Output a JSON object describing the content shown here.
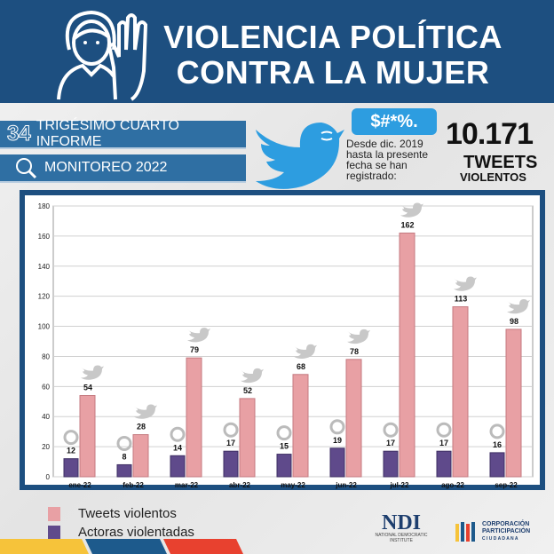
{
  "header": {
    "title_line1": "VIOLENCIA POLÍTICA",
    "title_line2": "CONTRA LA MUJER"
  },
  "bands": {
    "report_number": "34",
    "report_label": "TRIGÉSIMO CUARTO INFORME",
    "monitoring_label": "MONITOREO 2022"
  },
  "callout": {
    "bubble": "$#*%.",
    "desde": "Desde dic. 2019 hasta la presente fecha se han registrado:",
    "total": "10.171",
    "tweets": "TWEETS",
    "violentos": "VIOLENTOS"
  },
  "logos": {
    "ndi": "NDI",
    "ndi_sub": "NATIONAL DEMOCRATIC INSTITUTE",
    "cpc1": "CORPORACIÓN",
    "cpc2": "PARTICIPACIÓN",
    "cpc3": "C I U D A D A N A"
  },
  "colors": {
    "tweets": "#e8a0a4",
    "actoras": "#5f4a8b",
    "frame": "#1d4f80"
  },
  "chart_data": {
    "type": "bar",
    "categories": [
      "ene-22",
      "feb-22",
      "mar-22",
      "abr-22",
      "may-22",
      "jun-22",
      "jul-22",
      "ago-22",
      "sep-22"
    ],
    "series": [
      {
        "name": "Actoras violentadas",
        "values": [
          12,
          8,
          14,
          17,
          15,
          19,
          17,
          17,
          16
        ]
      },
      {
        "name": "Tweets violentos",
        "values": [
          54,
          28,
          79,
          52,
          68,
          78,
          162,
          113,
          98
        ]
      }
    ],
    "ylim": [
      0,
      180
    ],
    "yticks": [
      0,
      20,
      40,
      60,
      80,
      100,
      120,
      140,
      160,
      180
    ],
    "grid": true,
    "legend": "bottom-left"
  }
}
